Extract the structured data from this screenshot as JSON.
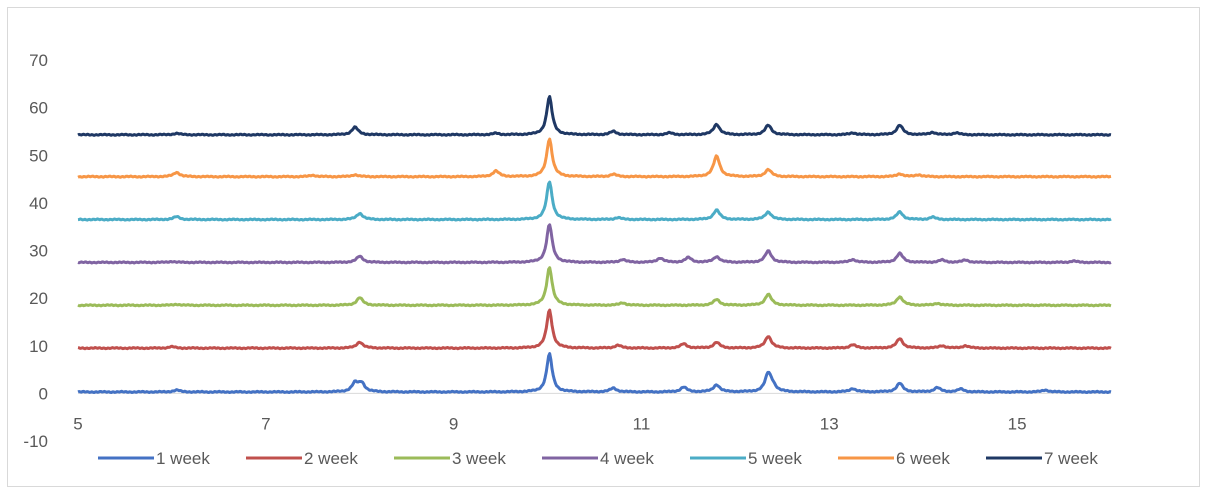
{
  "chart_data": {
    "type": "line",
    "title": "",
    "xlabel": "",
    "ylabel": "",
    "xlim": [
      5,
      16
    ],
    "ylim": [
      -10,
      70
    ],
    "x_ticks": [
      5,
      7,
      9,
      11,
      13,
      15
    ],
    "y_ticks": [
      -10,
      0,
      10,
      20,
      30,
      40,
      50,
      60,
      70
    ],
    "grid": false,
    "legend_position": "bottom",
    "series": [
      {
        "name": "1 week",
        "color": "#4472c4",
        "baseline": 0.3,
        "peaks": [
          [
            6.05,
            0.4
          ],
          [
            7.95,
            1.8
          ],
          [
            8.02,
            1.8
          ],
          [
            10.02,
            8.0
          ],
          [
            10.7,
            0.8
          ],
          [
            11.45,
            1.0
          ],
          [
            11.8,
            1.5
          ],
          [
            12.35,
            3.8
          ],
          [
            12.4,
            1.0
          ],
          [
            13.25,
            0.7
          ],
          [
            13.75,
            1.8
          ],
          [
            14.15,
            0.9
          ],
          [
            14.4,
            0.6
          ],
          [
            15.3,
            0.4
          ]
        ]
      },
      {
        "name": "2 week",
        "color": "#c0504d",
        "baseline": 9.5,
        "peaks": [
          [
            6.0,
            0.3
          ],
          [
            8.0,
            1.3
          ],
          [
            10.02,
            8.0
          ],
          [
            10.75,
            0.6
          ],
          [
            11.45,
            0.9
          ],
          [
            11.8,
            1.2
          ],
          [
            12.35,
            2.5
          ],
          [
            13.25,
            0.7
          ],
          [
            13.75,
            2.0
          ],
          [
            14.2,
            0.5
          ],
          [
            14.45,
            0.5
          ]
        ]
      },
      {
        "name": "3 week",
        "color": "#9bbb59",
        "baseline": 18.5,
        "peaks": [
          [
            6.05,
            0.2
          ],
          [
            8.0,
            1.6
          ],
          [
            10.02,
            8.0
          ],
          [
            10.8,
            0.5
          ],
          [
            11.8,
            1.2
          ],
          [
            12.35,
            2.3
          ],
          [
            13.75,
            1.8
          ],
          [
            14.15,
            0.4
          ]
        ]
      },
      {
        "name": "4 week",
        "color": "#8064a2",
        "baseline": 27.5,
        "peaks": [
          [
            6.0,
            0.2
          ],
          [
            8.0,
            1.3
          ],
          [
            10.02,
            8.0
          ],
          [
            10.8,
            0.6
          ],
          [
            11.2,
            0.9
          ],
          [
            11.5,
            1.0
          ],
          [
            11.8,
            1.2
          ],
          [
            12.35,
            2.4
          ],
          [
            13.25,
            0.6
          ],
          [
            13.75,
            1.9
          ],
          [
            14.2,
            0.5
          ],
          [
            14.45,
            0.5
          ],
          [
            15.6,
            0.3
          ]
        ]
      },
      {
        "name": "5 week",
        "color": "#4bacc6",
        "baseline": 36.5,
        "peaks": [
          [
            6.05,
            0.6
          ],
          [
            8.0,
            1.3
          ],
          [
            10.02,
            8.0
          ],
          [
            10.75,
            0.4
          ],
          [
            11.8,
            2.0
          ],
          [
            12.35,
            1.6
          ],
          [
            13.75,
            1.6
          ],
          [
            14.1,
            0.5
          ]
        ]
      },
      {
        "name": "6 week",
        "color": "#f79646",
        "baseline": 45.5,
        "peaks": [
          [
            6.05,
            0.9
          ],
          [
            7.5,
            0.3
          ],
          [
            7.95,
            0.4
          ],
          [
            9.45,
            1.2
          ],
          [
            10.02,
            8.0
          ],
          [
            10.7,
            0.5
          ],
          [
            11.8,
            4.3
          ],
          [
            12.35,
            1.5
          ],
          [
            13.75,
            0.6
          ],
          [
            13.95,
            0.4
          ]
        ]
      },
      {
        "name": "7 week",
        "color": "#1f3864",
        "baseline": 54.3,
        "peaks": [
          [
            6.05,
            0.3
          ],
          [
            7.95,
            1.6
          ],
          [
            9.45,
            0.3
          ],
          [
            10.02,
            8.0
          ],
          [
            10.7,
            0.7
          ],
          [
            11.3,
            0.4
          ],
          [
            11.8,
            2.2
          ],
          [
            12.35,
            2.0
          ],
          [
            13.25,
            0.4
          ],
          [
            13.75,
            2.0
          ],
          [
            14.1,
            0.5
          ],
          [
            14.35,
            0.4
          ]
        ]
      }
    ]
  }
}
